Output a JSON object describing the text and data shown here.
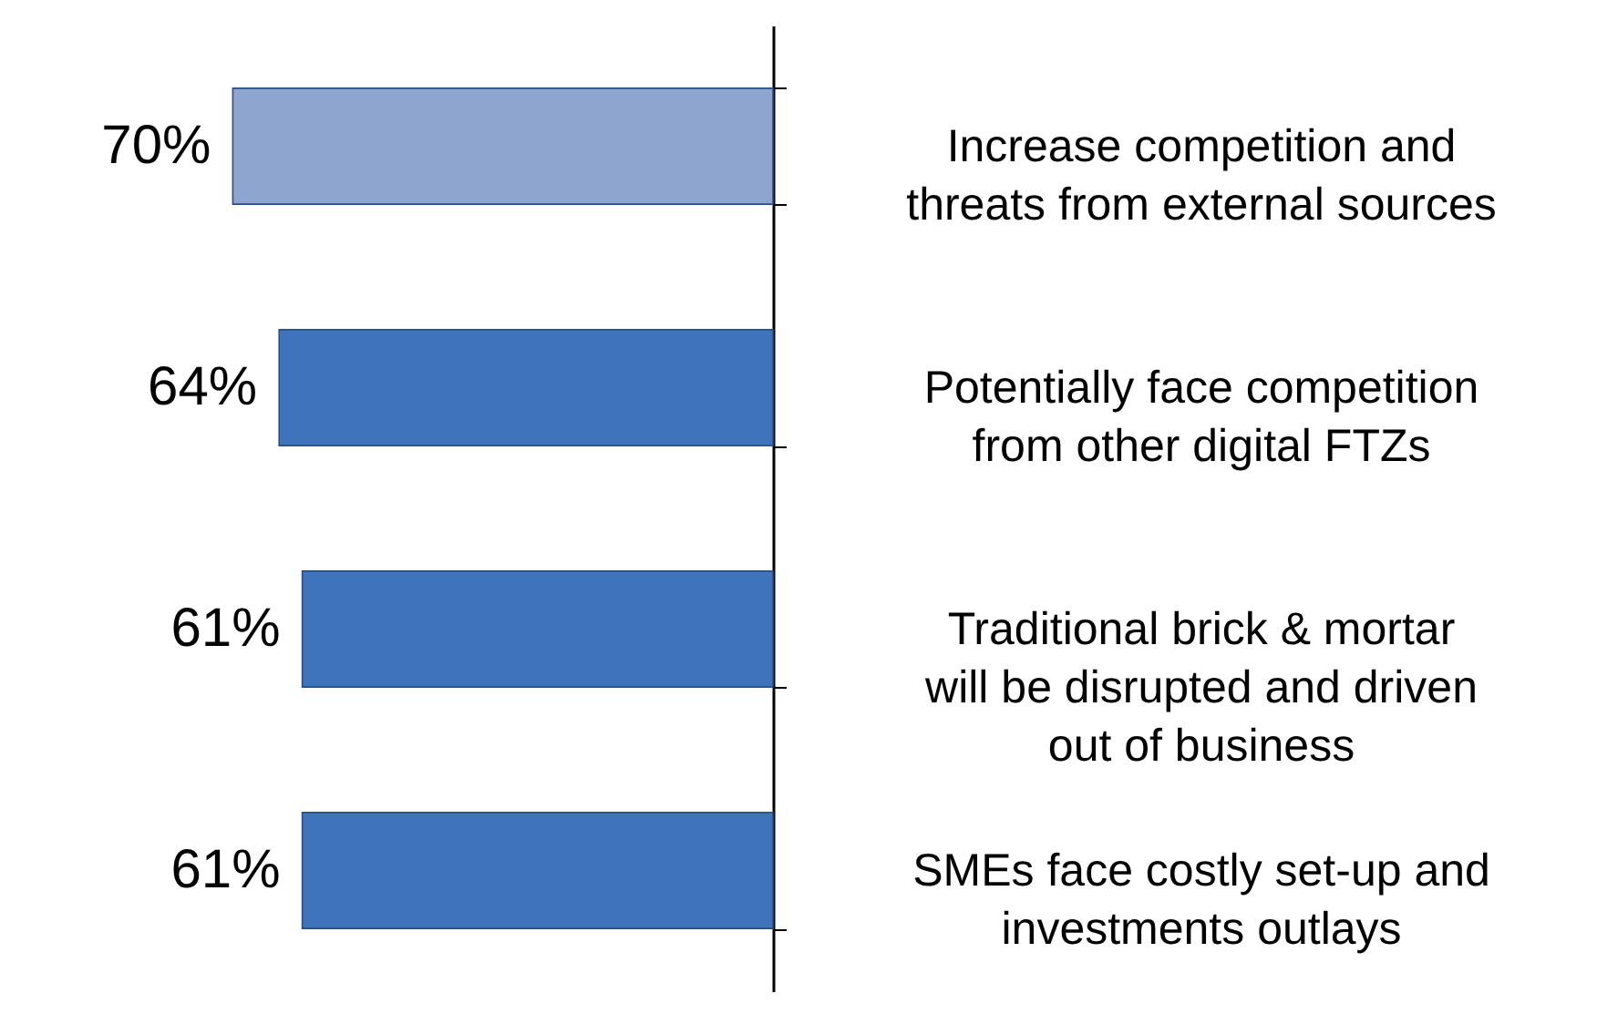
{
  "chart_data": {
    "type": "bar",
    "orientation": "horizontal",
    "categories": [
      "Increase competition and threats from external sources",
      "Potentially face competition from other digital FTZs",
      "Traditional brick & mortar will be disrupted and driven out of business",
      "SMEs face costly set-up and investments outlays"
    ],
    "values": [
      70,
      64,
      61,
      61
    ],
    "colors": [
      "#8ea6cf",
      "#3f74bd",
      "#3f74bd",
      "#3f74bd"
    ],
    "value_labels": [
      "70%",
      "64%",
      "61%",
      "61%"
    ]
  }
}
